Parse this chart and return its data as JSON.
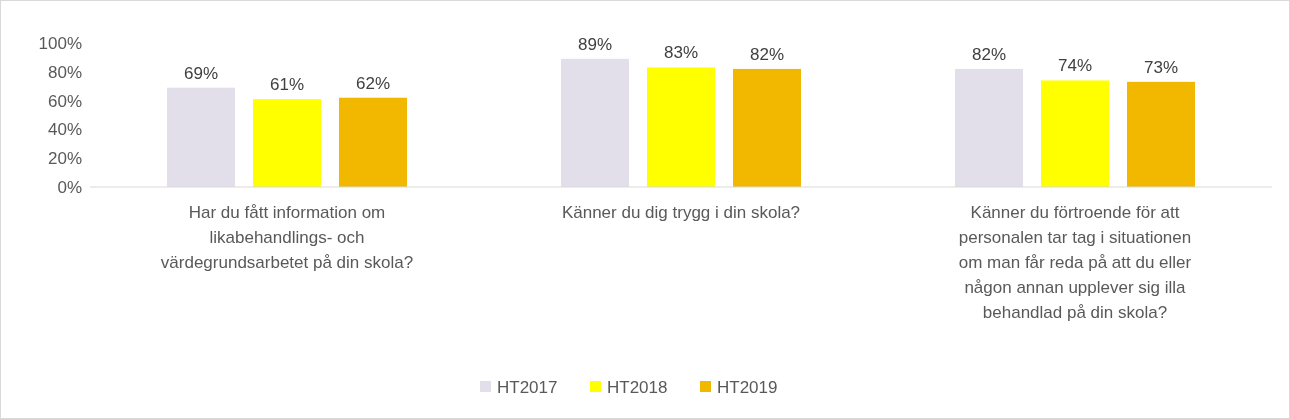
{
  "chart_data": {
    "type": "bar",
    "categories": [
      "Har du fått information om likabehandlings- och värdegrundsarbetet på din skola?",
      "Känner du dig trygg i din skola?",
      "Känner du förtroende för att personalen tar tag i situationen om man får reda på att du eller någon annan upplever sig illa behandlad på din skola?"
    ],
    "series": [
      {
        "name": "HT2017",
        "color": "#e2dfeb",
        "values": [
          69,
          89,
          82
        ],
        "value_labels": [
          "69%",
          "89%",
          "82%"
        ]
      },
      {
        "name": "HT2018",
        "color": "#ffff00",
        "values": [
          61,
          83,
          74
        ],
        "value_labels": [
          "61%",
          "83%",
          "74%"
        ]
      },
      {
        "name": "HT2019",
        "color": "#f2b800",
        "values": [
          62,
          82,
          73
        ],
        "value_labels": [
          "62%",
          "82%",
          "73%"
        ]
      }
    ],
    "ylim": [
      0,
      100
    ],
    "yticks": [
      {
        "value": 0,
        "label": "0%"
      },
      {
        "value": 20,
        "label": "20%"
      },
      {
        "value": 40,
        "label": "40%"
      },
      {
        "value": 60,
        "label": "60%"
      },
      {
        "value": 80,
        "label": "80%"
      },
      {
        "value": 100,
        "label": "100%"
      }
    ],
    "legend": "bottom"
  }
}
